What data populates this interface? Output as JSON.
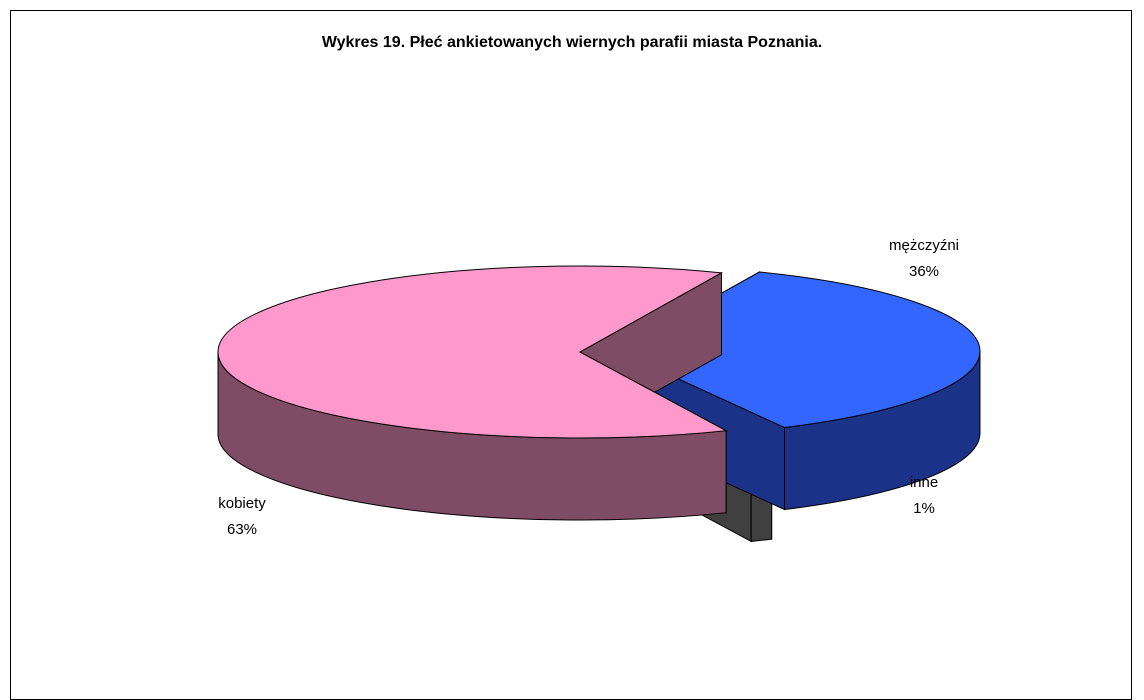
{
  "chart_data": {
    "type": "pie",
    "title": "Wykres 19. Płeć ankietowanych wiernych parafii miasta Poznania.",
    "categories": [
      "mężczyźni",
      "inne",
      "kobiety"
    ],
    "values": [
      36,
      1,
      63
    ],
    "value_labels": [
      "36%",
      "1%",
      "63%"
    ],
    "three_d": true,
    "exploded": true,
    "colors": {
      "mężczyźni": "#3366ff",
      "inne": "#999999",
      "kobiety": "#ff99cc"
    },
    "side_colors": {
      "mężczyźni": "#1a3388",
      "inne": "#404040",
      "kobiety": "#7f4c66"
    }
  }
}
